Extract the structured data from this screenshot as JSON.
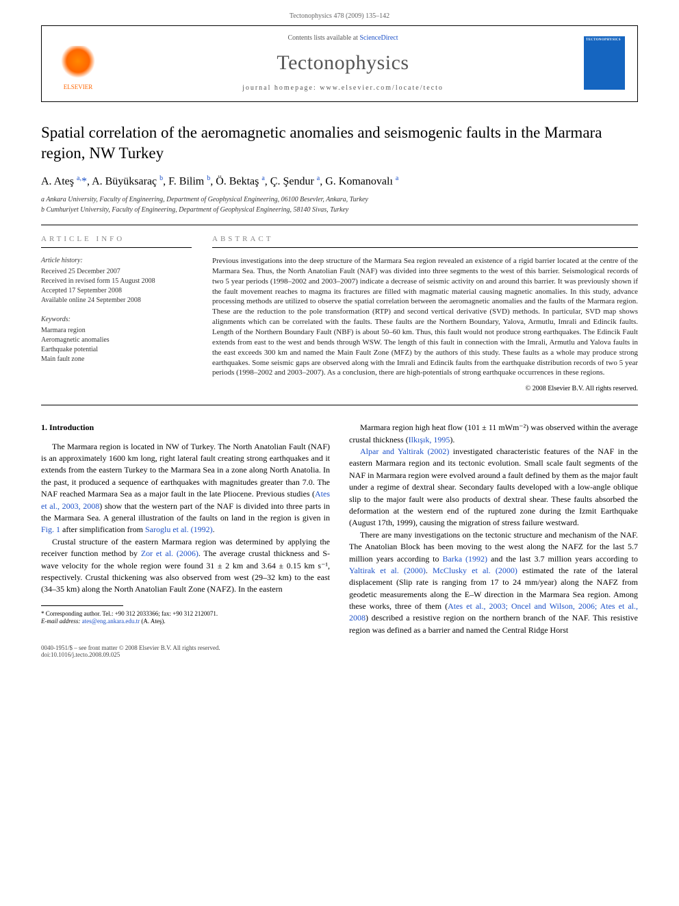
{
  "pageHeader": "Tectonophysics 478 (2009) 135–142",
  "journalBox": {
    "contentsLine_prefix": "Contents lists available at ",
    "contentsLine_link": "ScienceDirect",
    "journalName": "Tectonophysics",
    "homepagePrefix": "journal homepage: ",
    "homepageUrl": "www.elsevier.com/locate/tecto",
    "publisherLabel": "ELSEVIER",
    "coverTitle": "TECTONOPHYSICS"
  },
  "article": {
    "title": "Spatial correlation of the aeromagnetic anomalies and seismogenic faults in the Marmara region, NW Turkey",
    "authorsHtml": "A. Ateş <sup>a,</sup><span class='star'>*</span>, A. Büyüksaraç <sup>b</sup>, F. Bilim <sup>b</sup>, Ö. Bektaş <sup>a</sup>, Ç. Şendur <sup>a</sup>, G. Komanovalı <sup>a</sup>",
    "affiliations": {
      "a": "a Ankara University, Faculty of Engineering, Department of Geophysical Engineering, 06100 Besevler, Ankara, Turkey",
      "b": "b Cumhuriyet University, Faculty of Engineering, Department of Geophysical Engineering, 58140 Sivas, Turkey"
    }
  },
  "meta": {
    "infoHeading": "article info",
    "abstractHeading": "abstract",
    "historyLabel": "Article history:",
    "history": [
      "Received 25 December 2007",
      "Received in revised form 15 August 2008",
      "Accepted 17 September 2008",
      "Available online 24 September 2008"
    ],
    "keywordsLabel": "Keywords:",
    "keywords": [
      "Marmara region",
      "Aeromagnetic anomalies",
      "Earthquake potential",
      "Main fault zone"
    ]
  },
  "abstract": "Previous investigations into the deep structure of the Marmara Sea region revealed an existence of a rigid barrier located at the centre of the Marmara Sea. Thus, the North Anatolian Fault (NAF) was divided into three segments to the west of this barrier. Seismological records of two 5 year periods (1998–2002 and 2003–2007) indicate a decrease of seismic activity on and around this barrier. It was previously shown if the fault movement reaches to magma its fractures are filled with magmatic material causing magnetic anomalies. In this study, advance processing methods are utilized to observe the spatial correlation between the aeromagnetic anomalies and the faults of the Marmara region. These are the reduction to the pole transformation (RTP) and second vertical derivative (SVD) methods. In particular, SVD map shows alignments which can be correlated with the faults. These faults are the Northern Boundary, Yalova, Armutlu, Imrali and Edincik faults. Length of the Northern Boundary Fault (NBF) is about 50–60 km. Thus, this fault would not produce strong earthquakes. The Edincik Fault extends from east to the west and bends through WSW. The length of this fault in connection with the Imrali, Armutlu and Yalova faults in the east exceeds 300 km and named the Main Fault Zone (MFZ) by the authors of this study. These faults as a whole may produce strong earthquakes. Some seismic gaps are observed along with the Imrali and Edincik faults from the earthquake distribution records of two 5 year periods (1998–2002 and 2003–2007). As a conclusion, there are high-potentials of strong earthquake occurrences in these regions.",
  "copyright": "© 2008 Elsevier B.V. All rights reserved.",
  "intro": {
    "heading": "1. Introduction",
    "p1_a": "The Marmara region is located in NW of Turkey. The North Anatolian Fault (NAF) is an approximately 1600 km long, right lateral fault creating strong earthquakes and it extends from the eastern Turkey to the Marmara Sea in a zone along North Anatolia. In the past, it produced a sequence of earthquakes with magnitudes greater than 7.0. The NAF reached Marmara Sea as a major fault in the late Pliocene. Previous studies (",
    "p1_ref1": "Ates et al., 2003, 2008",
    "p1_b": ") show that the western part of the NAF is divided into three parts in the Marmara Sea. A general illustration of the faults on land in the region is given in ",
    "p1_ref2": "Fig. 1",
    "p1_c": " after simplification from ",
    "p1_ref3": "Saroglu et al. (1992)",
    "p1_d": ".",
    "p2_a": "Crustal structure of the eastern Marmara region was determined by applying the receiver function method by ",
    "p2_ref1": "Zor et al. (2006)",
    "p2_b": ". The average crustal thickness and S-wave velocity for the whole region were found 31 ± 2 km and 3.64 ± 0.15 km s⁻¹, respectively. Crustal thickening was also observed from west (29–32 km) to the east (34–35 km) along the North Anatolian Fault Zone (NAFZ). In the eastern",
    "p3_a": "Marmara region high heat flow (101 ± 11 mWm⁻²) was observed within the average crustal thickness (",
    "p3_ref1": "Ilkışık, 1995",
    "p3_b": ").",
    "p4_ref1": "Alpar and Yaltirak (2002)",
    "p4_a": " investigated characteristic features of the NAF in the eastern Marmara region and its tectonic evolution. Small scale fault segments of the NAF in Marmara region were evolved around a fault defined by them as the major fault under a regime of dextral shear. Secondary faults developed with a low-angle oblique slip to the major fault were also products of dextral shear. These faults absorbed the deformation at the western end of the ruptured zone during the Izmit Earthquake (August 17th, 1999), causing the migration of stress failure westward.",
    "p5_a": "There are many investigations on the tectonic structure and mechanism of the NAF. The Anatolian Block has been moving to the west along the NAFZ for the last 5.7 million years according to ",
    "p5_ref1": "Barka (1992)",
    "p5_b": " and the last 3.7 million years according to ",
    "p5_ref2": "Yaltirak et al. (2000)",
    "p5_c": ". ",
    "p5_ref3": "McClusky et al. (2000)",
    "p5_d": " estimated the rate of the lateral displacement (Slip rate is ranging from 17 to 24 mm/year) along the NAFZ from geodetic measurements along the E–W direction in the Marmara Sea region. Among these works, three of them (",
    "p5_ref4": "Ates et al., 2003; Oncel and Wilson, 2006; Ates et al., 2008",
    "p5_e": ") described a resistive region on the northern branch of the NAF. This resistive region was defined as a barrier and named the Central Ridge Horst"
  },
  "footnote": {
    "corr": "* Corresponding author. Tel.: +90 312 2033366; fax: +90 312 2120071.",
    "email_label": "E-mail address:",
    "email": "ates@eng.ankara.edu.tr",
    "email_who": "(A. Ateş)."
  },
  "footer": {
    "left1": "0040-1951/$ – see front matter © 2008 Elsevier B.V. All rights reserved.",
    "left2": "doi:10.1016/j.tecto.2008.09.025"
  },
  "colors": {
    "link": "#1a4fc7",
    "elsevierOrange": "#ff6600",
    "coverBlue": "#1565c0"
  }
}
